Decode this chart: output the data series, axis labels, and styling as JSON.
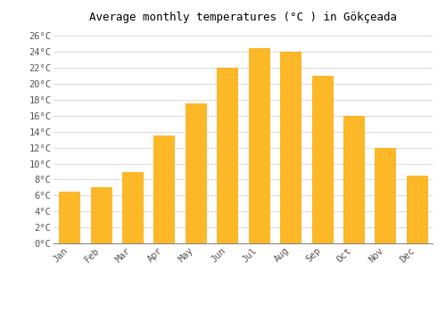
{
  "title": "Average monthly temperatures (°C ) in Gökçeada",
  "months": [
    "Jan",
    "Feb",
    "Mar",
    "Apr",
    "May",
    "Jun",
    "Jul",
    "Aug",
    "Sep",
    "Oct",
    "Nov",
    "Dec"
  ],
  "values": [
    6.5,
    7.0,
    9.0,
    13.5,
    17.5,
    22.0,
    24.5,
    24.0,
    21.0,
    16.0,
    12.0,
    8.5
  ],
  "bar_color": "#FDB827",
  "bar_edge_color": "#FFA500",
  "background_color": "#ffffff",
  "grid_color": "#dddddd",
  "ylim": [
    0,
    27
  ],
  "yticks": [
    0,
    2,
    4,
    6,
    8,
    10,
    12,
    14,
    16,
    18,
    20,
    22,
    24,
    26
  ],
  "title_fontsize": 9,
  "tick_fontsize": 7.5,
  "font_family": "monospace"
}
